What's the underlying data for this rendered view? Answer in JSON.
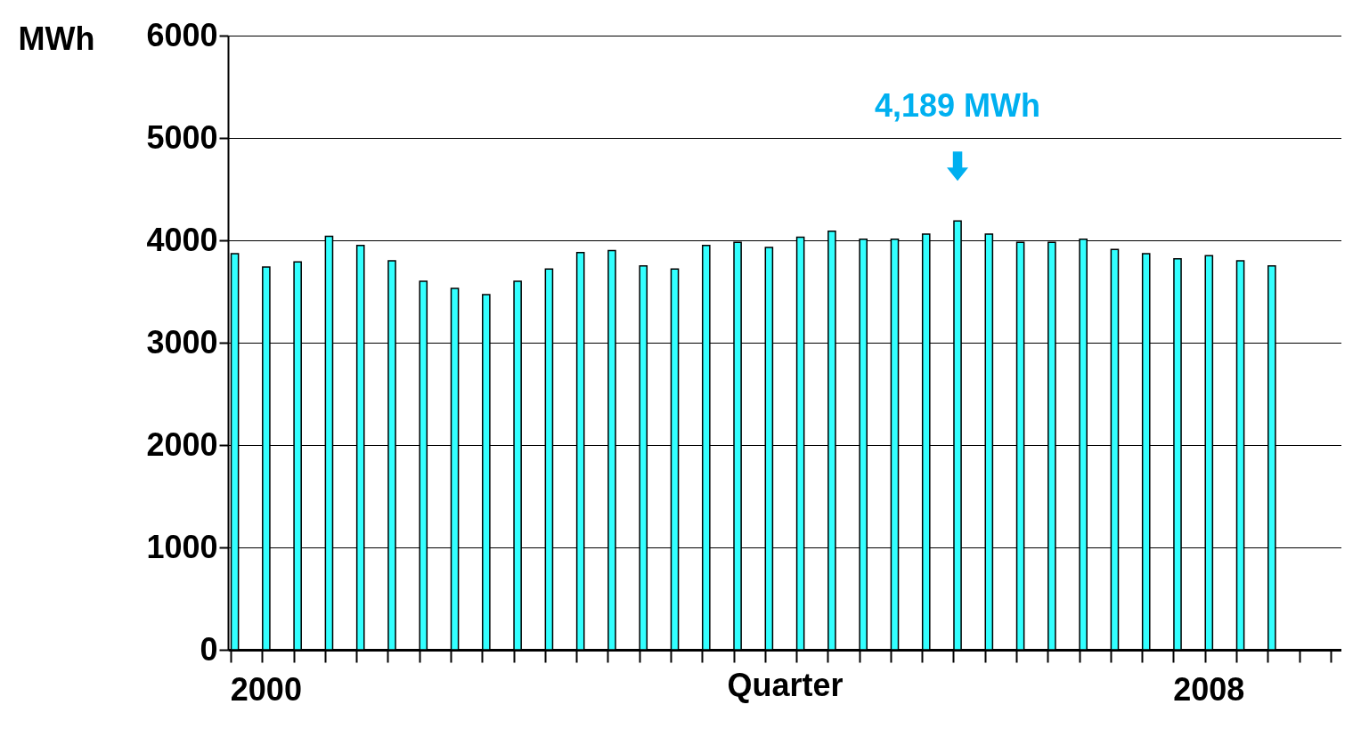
{
  "chart_data": {
    "type": "bar",
    "xlabel": "Quarter",
    "ylabel": "MWh",
    "categories": [
      null,
      "2000",
      null,
      null,
      null,
      null,
      null,
      null,
      null,
      null,
      null,
      null,
      null,
      null,
      null,
      null,
      null,
      null,
      null,
      null,
      null,
      null,
      null,
      null,
      null,
      null,
      null,
      null,
      null,
      null,
      null,
      "2008",
      null,
      null,
      null,
      null
    ],
    "values": [
      3870,
      3740,
      3790,
      4040,
      3950,
      3800,
      3600,
      3530,
      3470,
      3600,
      3720,
      3880,
      3900,
      3750,
      3720,
      3950,
      3980,
      3930,
      4030,
      4090,
      4010,
      4010,
      4060,
      4189,
      4060,
      3980,
      3980,
      4010,
      3910,
      3870,
      3820,
      3850,
      3800,
      3750,
      null,
      null
    ],
    "color": "#33ffff",
    "ylim": [
      0,
      6000
    ],
    "yticks": [
      0,
      1000,
      2000,
      3000,
      4000,
      5000,
      6000
    ],
    "grid": "y",
    "annotations": [
      "4,189 MWh"
    ]
  }
}
